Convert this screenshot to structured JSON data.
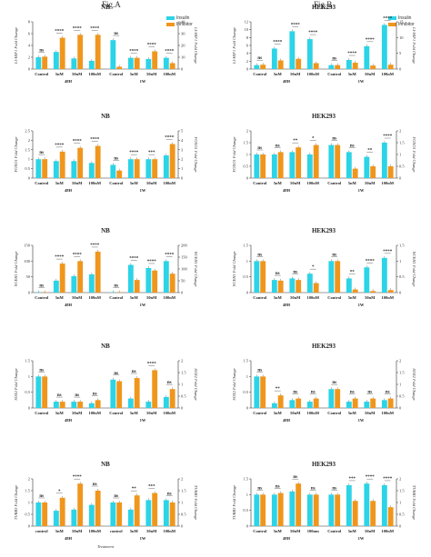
{
  "columns": [
    {
      "title": "Fig.A"
    },
    {
      "title": "Fig.B"
    }
  ],
  "legend": {
    "items": [
      {
        "label": "Insulin",
        "color": "#2bd4e6"
      },
      {
        "label": "Inhibitor",
        "color": "#f0961c"
      }
    ]
  },
  "colors": {
    "insulin": "#2bd4e6",
    "inhibitor": "#f0961c"
  },
  "chart_data": [
    {
      "type": "bar",
      "title": "NB",
      "categories": [
        "Control",
        "5nM",
        "50nM",
        "100nM",
        "Control",
        "5nM",
        "50nM",
        "100nM"
      ],
      "groups": [
        {
          "label": "48H",
          "span": [
            0,
            3
          ]
        },
        {
          "label": "1W",
          "span": [
            4,
            7
          ]
        }
      ],
      "ylabel": "LI-HIF1 Fold Change",
      "y2label": "LI-HIF1 Fold Change",
      "ylim": [
        0,
        8
      ],
      "yticks": [
        0,
        2,
        4,
        6,
        8
      ],
      "y2lim": [
        0,
        40
      ],
      "y2ticks": [
        0,
        10,
        20,
        30,
        40
      ],
      "series": [
        {
          "name": "Insulin",
          "values": [
            2.0,
            2.9,
            1.8,
            1.4,
            4.9,
            1.9,
            1.7,
            1.9
          ]
        },
        {
          "name": "Inhibitor",
          "values": [
            2.1,
            5.3,
            5.8,
            5.8,
            0.4,
            1.9,
            3.0,
            1.0
          ]
        }
      ],
      "significance": [
        "ns",
        "****",
        "****",
        "****",
        "ns",
        "****",
        "****",
        "****"
      ]
    },
    {
      "type": "bar",
      "title": "HEK293",
      "categories": [
        "Control",
        "5nM",
        "50nM",
        "100nM",
        "Control",
        "5nM",
        "50nM",
        "100nM"
      ],
      "groups": [
        {
          "label": "48H",
          "span": [
            0,
            3
          ]
        },
        {
          "label": "1W",
          "span": [
            4,
            7
          ]
        }
      ],
      "ylabel": "LI-HIF1 Fold Change",
      "y2label": "LI-HIF1 Fold Change",
      "ylim": [
        0,
        12
      ],
      "yticks": [
        0,
        2,
        4,
        6,
        8,
        10,
        12
      ],
      "y2lim": [
        0,
        15
      ],
      "y2ticks": [
        0,
        5,
        10,
        15
      ],
      "series": [
        {
          "name": "Insulin",
          "values": [
            1.0,
            5.2,
            9.6,
            7.6,
            1.0,
            2.3,
            5.8,
            11.2
          ]
        },
        {
          "name": "Inhibitor",
          "values": [
            1.1,
            2.2,
            2.6,
            1.5,
            1.0,
            1.6,
            0.9,
            1.1
          ]
        }
      ],
      "significance": [
        "ns",
        "****",
        "****",
        "****",
        "ns",
        "****",
        "****",
        "****"
      ]
    },
    {
      "type": "bar",
      "title": "NB",
      "categories": [
        "Control",
        "5nM",
        "50nM",
        "100nM",
        "Control",
        "5nM",
        "50nM",
        "100nM"
      ],
      "groups": [
        {
          "label": "48H",
          "span": [
            0,
            3
          ]
        },
        {
          "label": "1W",
          "span": [
            4,
            7
          ]
        }
      ],
      "ylabel": "FOXO1 Fold Change",
      "y2label": "FOXO1 Fold Change",
      "ylim": [
        0,
        2.5
      ],
      "yticks": [
        0.0,
        0.5,
        1.0,
        1.5,
        2.0,
        2.5
      ],
      "y2lim": [
        0,
        5
      ],
      "y2ticks": [
        0,
        1,
        2,
        3,
        4,
        5
      ],
      "series": [
        {
          "name": "Insulin",
          "values": [
            1.0,
            0.9,
            0.9,
            0.8,
            0.7,
            1.0,
            1.0,
            1.2
          ]
        },
        {
          "name": "Inhibitor",
          "values": [
            1.0,
            1.4,
            1.6,
            1.7,
            0.4,
            1.0,
            1.0,
            1.8
          ]
        }
      ],
      "significance": [
        "ns",
        "****",
        "****",
        "****",
        "ns",
        "****",
        "***",
        "****"
      ]
    },
    {
      "type": "bar",
      "title": "HEK293",
      "categories": [
        "Control",
        "5nM",
        "50nM",
        "100nM",
        "Control",
        "5nM",
        "50nM",
        "100nM"
      ],
      "groups": [
        {
          "label": "48H",
          "span": [
            0,
            3
          ]
        },
        {
          "label": "1W",
          "span": [
            4,
            7
          ]
        }
      ],
      "ylabel": "FOXO1 Fold Change",
      "y2label": "FOXO1 Fold Change",
      "ylim": [
        0,
        2.0
      ],
      "yticks": [
        0.0,
        0.5,
        1.0,
        1.5,
        2.0
      ],
      "y2lim": [
        0,
        2.0
      ],
      "y2ticks": [
        0.0,
        0.5,
        1.0,
        1.5,
        2.0
      ],
      "series": [
        {
          "name": "Insulin",
          "values": [
            1.0,
            1.0,
            1.1,
            1.0,
            1.4,
            1.1,
            0.9,
            1.5
          ]
        },
        {
          "name": "Inhibitor",
          "values": [
            1.0,
            1.1,
            1.3,
            1.4,
            1.4,
            0.4,
            0.5,
            0.5
          ]
        }
      ],
      "significance": [
        "ns",
        "ns",
        "**",
        "*",
        "ns",
        "ns",
        "**",
        "****"
      ]
    },
    {
      "type": "bar",
      "title": "NB",
      "categories": [
        "Control",
        "5nM",
        "50nM",
        "100nM",
        "Control",
        "5nM",
        "50nM",
        "100nM"
      ],
      "groups": [
        {
          "label": "48H",
          "span": [
            0,
            3
          ]
        },
        {
          "label": "1W",
          "span": [
            4,
            7
          ]
        }
      ],
      "ylabel": "NCEH1 Fold Change",
      "y2label": "NCEH1 Fold Change",
      "ylim": [
        0,
        150
      ],
      "yticks": [
        0,
        50,
        100,
        150
      ],
      "y2lim": [
        0,
        200
      ],
      "y2ticks": [
        0,
        50,
        100,
        150,
        200
      ],
      "series": [
        {
          "name": "Insulin",
          "values": [
            1,
            38,
            52,
            58,
            1,
            88,
            78,
            100
          ]
        },
        {
          "name": "Inhibitor",
          "values": [
            1,
            92,
            100,
            130,
            1,
            40,
            70,
            60
          ]
        }
      ],
      "significance": [
        "ns",
        "****",
        "****",
        "****",
        "ns",
        "****",
        "****",
        "****"
      ]
    },
    {
      "type": "bar",
      "title": "HEK293",
      "categories": [
        "Control",
        "5nM",
        "50nM",
        "100nM",
        "Control",
        "5nM",
        "50nM",
        "100nM"
      ],
      "groups": [
        {
          "label": "48H",
          "span": [
            0,
            3
          ]
        },
        {
          "label": "1W",
          "span": [
            4,
            7
          ]
        }
      ],
      "ylabel": "NCEH1 Fold Change",
      "y2label": "NCEH1 Fold Change",
      "ylim": [
        0,
        1.5
      ],
      "yticks": [
        0.0,
        0.5,
        1.0,
        1.5
      ],
      "y2lim": [
        0,
        1.5
      ],
      "y2ticks": [
        0.0,
        0.5,
        1.0,
        1.5
      ],
      "series": [
        {
          "name": "Insulin",
          "values": [
            1.0,
            0.4,
            0.45,
            0.6,
            1.0,
            0.45,
            0.8,
            1.1
          ]
        },
        {
          "name": "Inhibitor",
          "values": [
            1.0,
            0.38,
            0.4,
            0.3,
            1.0,
            0.1,
            0.05,
            0.08
          ]
        }
      ],
      "significance": [
        "ns",
        "ns",
        "ns",
        "*",
        "ns",
        "**",
        "****",
        "****"
      ]
    },
    {
      "type": "bar",
      "title": "NB",
      "categories": [
        "Control",
        "5nM",
        "50nM",
        "100nM",
        "Control",
        "5nM",
        "50nM",
        "100nM"
      ],
      "groups": [
        {
          "label": "48H",
          "span": [
            0,
            3
          ]
        },
        {
          "label": "1W",
          "span": [
            4,
            7
          ]
        }
      ],
      "ylabel": "SOX2 Fold Change",
      "y2label": "SOX2 Fold Change",
      "ylim": [
        0,
        1.5
      ],
      "yticks": [
        0.0,
        0.5,
        1.0,
        1.5
      ],
      "y2lim": [
        0,
        2.0
      ],
      "y2ticks": [
        0.0,
        0.5,
        1.0,
        1.5,
        2.0
      ],
      "series": [
        {
          "name": "Insulin",
          "values": [
            1.0,
            0.2,
            0.2,
            0.15,
            0.9,
            0.3,
            0.2,
            0.35
          ]
        },
        {
          "name": "Inhibitor",
          "values": [
            1.0,
            0.2,
            0.2,
            0.25,
            0.85,
            0.95,
            1.2,
            0.6
          ]
        }
      ],
      "significance": [
        "ns",
        "ns",
        "ns",
        "ns",
        "ns",
        "ns",
        "****",
        "ns"
      ]
    },
    {
      "type": "bar",
      "title": "HEK293",
      "categories": [
        "Control",
        "5nM",
        "50nM",
        "100nM",
        "Control",
        "5nM",
        "50nM",
        "100nM"
      ],
      "groups": [
        {
          "label": "48H",
          "span": [
            0,
            3
          ]
        },
        {
          "label": "1W",
          "span": [
            4,
            7
          ]
        }
      ],
      "ylabel": "SOX2 Fold Change",
      "y2label": "SOX2 Fold Change",
      "ylim": [
        0,
        1.5
      ],
      "yticks": [
        0.0,
        0.5,
        1.0,
        1.5
      ],
      "y2lim": [
        0,
        2.0
      ],
      "y2ticks": [
        0.0,
        0.5,
        1.0,
        1.5,
        2.0
      ],
      "series": [
        {
          "name": "Insulin",
          "values": [
            1.0,
            0.15,
            0.25,
            0.2,
            0.6,
            0.2,
            0.2,
            0.25
          ]
        },
        {
          "name": "Inhibitor",
          "values": [
            1.0,
            0.4,
            0.3,
            0.3,
            0.6,
            0.3,
            0.3,
            0.3
          ]
        }
      ],
      "significance": [
        "ns",
        "**",
        "ns",
        "ns",
        "ns",
        "ns",
        "ns",
        "ns"
      ]
    },
    {
      "type": "bar",
      "title": "NB",
      "categories": [
        "control",
        "5nM",
        "50nM",
        "100nM",
        "control",
        "5nM",
        "50nM",
        "100nM"
      ],
      "groups": [
        {
          "label": "48H",
          "span": [
            0,
            3
          ]
        },
        {
          "label": "1W",
          "span": [
            4,
            7
          ]
        }
      ],
      "xlabel": "Treatment",
      "ylabel": "TUBB3 Fold Change",
      "y2label": "TUBB3 Fold Change",
      "ylim": [
        0,
        2.0
      ],
      "yticks": [
        0.0,
        0.5,
        1.0,
        1.5,
        2.0
      ],
      "y2lim": [
        0,
        2.0
      ],
      "y2ticks": [
        0.0,
        0.5,
        1.0,
        1.5,
        2.0
      ],
      "series": [
        {
          "name": "Insulin",
          "values": [
            1.0,
            0.65,
            0.7,
            0.9,
            1.0,
            0.7,
            1.1,
            1.1
          ]
        },
        {
          "name": "Inhibitor",
          "values": [
            1.0,
            1.2,
            1.8,
            1.5,
            1.0,
            1.3,
            1.4,
            1.0
          ]
        }
      ],
      "significance": [
        "ns",
        "*",
        "****",
        "ns",
        "ns",
        "**",
        "***",
        "ns"
      ]
    },
    {
      "type": "bar",
      "title": "HEK293",
      "categories": [
        "Control",
        "5nM",
        "50nM",
        "100nm",
        "Control",
        "5nM",
        "50nM",
        "100nM"
      ],
      "groups": [
        {
          "label": "48H",
          "span": [
            0,
            3
          ]
        },
        {
          "label": "1W",
          "span": [
            4,
            7
          ]
        }
      ],
      "ylabel": "TUBB3 Fold Change",
      "y2label": "TUBB3 Fold Change",
      "ylim": [
        0,
        1.5
      ],
      "yticks": [
        0.0,
        0.5,
        1.0,
        1.5
      ],
      "y2lim": [
        0,
        2.0
      ],
      "y2ticks": [
        0.0,
        0.5,
        1.0,
        1.5,
        2.0
      ],
      "series": [
        {
          "name": "Insulin",
          "values": [
            1.0,
            1.0,
            1.1,
            1.0,
            1.0,
            1.3,
            1.35,
            1.3
          ]
        },
        {
          "name": "Inhibitor",
          "values": [
            1.0,
            1.05,
            1.35,
            1.0,
            1.0,
            0.8,
            0.8,
            0.6
          ]
        }
      ],
      "significance": [
        "ns",
        "ns",
        "ns",
        "ns",
        "ns",
        "***",
        "****",
        "****"
      ]
    }
  ]
}
